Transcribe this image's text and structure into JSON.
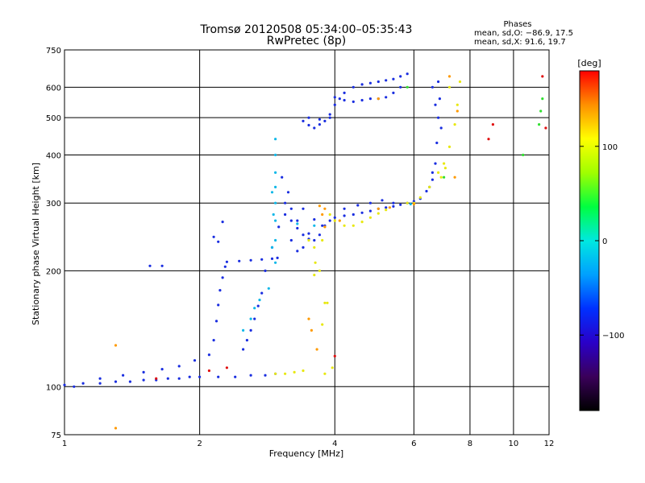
{
  "header": {
    "title_line1": "Tromsø 20120508 05:34:00–05:35:43",
    "title_line2": "RwPretec (8p)"
  },
  "stats": {
    "heading": "Phases",
    "line1": "mean, sd,O: −86.9, 17.5",
    "line2": "mean, sd,X:  91.6, 19.7"
  },
  "colorbar": {
    "unit_label": "[deg]",
    "ticks": [
      {
        "value": 100,
        "label": "100"
      },
      {
        "value": 0,
        "label": "0"
      },
      {
        "value": -100,
        "label": "−100"
      }
    ],
    "range": [
      -180,
      180
    ],
    "colors": [
      "#000000",
      "#3a005a",
      "#2a00c8",
      "#0030ff",
      "#00a0ff",
      "#00e8e0",
      "#00ff40",
      "#a0ff00",
      "#ffff00",
      "#ff9000",
      "#ff0000"
    ]
  },
  "chart_data": {
    "type": "scatter",
    "xlabel": "Frequency [MHz]",
    "ylabel": "Stationary phase Virtual Height [km]",
    "x_scale": "log",
    "y_scale": "log",
    "xlim": [
      1,
      12
    ],
    "ylim": [
      75,
      750
    ],
    "grid": true,
    "x_ticks": [
      {
        "value": 1,
        "label": "1"
      },
      {
        "value": 2,
        "label": "2"
      },
      {
        "value": 4,
        "label": "4"
      },
      {
        "value": 6,
        "label": "6"
      },
      {
        "value": 8,
        "label": "8"
      },
      {
        "value": 10,
        "label": "10"
      },
      {
        "value": 12,
        "label": "12"
      }
    ],
    "y_ticks": [
      {
        "value": 75,
        "label": "75"
      },
      {
        "value": 100,
        "label": "100"
      },
      {
        "value": 200,
        "label": "200"
      },
      {
        "value": 300,
        "label": "300"
      },
      {
        "value": 400,
        "label": "400"
      },
      {
        "value": 500,
        "label": "500"
      },
      {
        "value": 600,
        "label": "600"
      },
      {
        "value": 750,
        "label": "750"
      }
    ],
    "series": [
      {
        "color": "#1a2ee0",
        "points": [
          [
            1.0,
            101
          ],
          [
            1.05,
            100
          ],
          [
            1.1,
            102
          ],
          [
            1.2,
            102
          ],
          [
            1.3,
            103
          ],
          [
            1.4,
            103
          ],
          [
            1.5,
            104
          ],
          [
            1.6,
            104
          ],
          [
            1.7,
            105
          ],
          [
            1.8,
            105
          ],
          [
            1.9,
            106
          ],
          [
            2.0,
            106
          ],
          [
            2.2,
            106
          ],
          [
            2.4,
            106
          ],
          [
            2.6,
            107
          ],
          [
            2.8,
            107
          ],
          [
            2.95,
            108
          ],
          [
            1.2,
            105
          ],
          [
            1.35,
            107
          ],
          [
            1.5,
            109
          ],
          [
            1.65,
            111
          ],
          [
            1.8,
            113
          ],
          [
            1.95,
            117
          ],
          [
            2.1,
            121
          ],
          [
            2.15,
            132
          ],
          [
            2.18,
            148
          ],
          [
            2.2,
            163
          ],
          [
            2.22,
            178
          ],
          [
            2.25,
            192
          ],
          [
            2.28,
            205
          ],
          [
            2.3,
            211
          ],
          [
            2.45,
            212
          ],
          [
            2.6,
            213
          ],
          [
            2.75,
            214
          ],
          [
            2.9,
            215
          ],
          [
            2.98,
            216
          ],
          [
            1.55,
            206
          ],
          [
            1.65,
            206
          ],
          [
            2.2,
            238
          ],
          [
            2.25,
            268
          ],
          [
            2.15,
            245
          ],
          [
            2.5,
            125
          ],
          [
            2.55,
            132
          ],
          [
            2.6,
            140
          ],
          [
            2.65,
            150
          ],
          [
            2.7,
            162
          ],
          [
            2.75,
            175
          ],
          [
            2.8,
            200
          ],
          [
            2.9,
            230
          ],
          [
            3.0,
            260
          ],
          [
            3.1,
            280
          ],
          [
            3.2,
            270
          ],
          [
            3.3,
            258
          ],
          [
            3.4,
            248
          ],
          [
            3.5,
            242
          ],
          [
            3.6,
            240
          ],
          [
            3.7,
            248
          ],
          [
            3.8,
            262
          ],
          [
            3.9,
            270
          ],
          [
            4.0,
            275
          ],
          [
            4.2,
            278
          ],
          [
            4.4,
            280
          ],
          [
            4.6,
            283
          ],
          [
            4.8,
            286
          ],
          [
            5.0,
            290
          ],
          [
            5.2,
            292
          ],
          [
            5.4,
            294
          ],
          [
            5.6,
            297
          ],
          [
            5.8,
            300
          ],
          [
            6.0,
            303
          ],
          [
            6.2,
            308
          ],
          [
            6.4,
            322
          ],
          [
            6.6,
            345
          ],
          [
            6.7,
            380
          ],
          [
            6.75,
            430
          ],
          [
            6.8,
            500
          ],
          [
            6.85,
            560
          ],
          [
            6.8,
            620
          ],
          [
            6.6,
            600
          ],
          [
            6.7,
            540
          ],
          [
            6.9,
            470
          ],
          [
            6.6,
            360
          ],
          [
            6.5,
            330
          ],
          [
            3.2,
            240
          ],
          [
            3.3,
            225
          ],
          [
            3.4,
            230
          ],
          [
            3.5,
            250
          ],
          [
            3.3,
            270
          ],
          [
            3.1,
            300
          ],
          [
            3.05,
            350
          ],
          [
            3.15,
            320
          ],
          [
            3.2,
            290
          ],
          [
            3.4,
            290
          ],
          [
            3.6,
            272
          ],
          [
            3.75,
            262
          ],
          [
            4.2,
            290
          ],
          [
            4.5,
            296
          ],
          [
            4.8,
            300
          ],
          [
            5.1,
            305
          ],
          [
            5.4,
            300
          ],
          [
            3.4,
            490
          ],
          [
            3.5,
            478
          ],
          [
            3.6,
            470
          ],
          [
            3.7,
            480
          ],
          [
            3.8,
            490
          ],
          [
            3.9,
            510
          ],
          [
            4.0,
            540
          ],
          [
            4.1,
            560
          ],
          [
            4.2,
            580
          ],
          [
            4.4,
            600
          ],
          [
            4.6,
            610
          ],
          [
            4.8,
            615
          ],
          [
            5.0,
            620
          ],
          [
            5.2,
            625
          ],
          [
            5.4,
            630
          ],
          [
            5.6,
            640
          ],
          [
            5.8,
            650
          ],
          [
            4.0,
            565
          ],
          [
            4.2,
            555
          ],
          [
            4.4,
            550
          ],
          [
            4.6,
            555
          ],
          [
            4.8,
            560
          ],
          [
            5.0,
            560
          ],
          [
            5.2,
            565
          ],
          [
            5.4,
            580
          ],
          [
            5.6,
            600
          ],
          [
            3.5,
            500
          ],
          [
            3.7,
            495
          ],
          [
            3.9,
            500
          ]
        ]
      },
      {
        "color": "#10b8e8",
        "points": [
          [
            2.95,
            210
          ],
          [
            2.95,
            240
          ],
          [
            2.95,
            270
          ],
          [
            2.95,
            300
          ],
          [
            2.95,
            330
          ],
          [
            2.95,
            360
          ],
          [
            2.95,
            400
          ],
          [
            2.95,
            440
          ],
          [
            2.9,
            230
          ],
          [
            2.92,
            280
          ],
          [
            2.9,
            320
          ],
          [
            2.6,
            150
          ],
          [
            2.65,
            160
          ],
          [
            2.72,
            168
          ],
          [
            2.85,
            180
          ],
          [
            2.5,
            140
          ],
          [
            3.3,
            265
          ],
          [
            3.6,
            262
          ],
          [
            5.9,
            298
          ]
        ]
      },
      {
        "color": "#e8e810",
        "points": [
          [
            2.95,
            108
          ],
          [
            3.1,
            108
          ],
          [
            3.25,
            109
          ],
          [
            3.4,
            110
          ],
          [
            3.6,
            195
          ],
          [
            3.62,
            210
          ],
          [
            3.7,
            200
          ],
          [
            3.5,
            240
          ],
          [
            3.6,
            230
          ],
          [
            3.75,
            240
          ],
          [
            3.9,
            280
          ],
          [
            4.0,
            270
          ],
          [
            4.2,
            262
          ],
          [
            4.4,
            262
          ],
          [
            4.6,
            268
          ],
          [
            4.8,
            275
          ],
          [
            5.0,
            282
          ],
          [
            5.2,
            288
          ],
          [
            5.8,
            300
          ],
          [
            6.0,
            300
          ],
          [
            6.2,
            310
          ],
          [
            6.5,
            330
          ],
          [
            6.8,
            360
          ],
          [
            7.0,
            380
          ],
          [
            7.2,
            420
          ],
          [
            7.4,
            480
          ],
          [
            7.5,
            540
          ],
          [
            7.6,
            620
          ],
          [
            7.2,
            600
          ],
          [
            6.9,
            350
          ],
          [
            7.05,
            370
          ],
          [
            3.8,
            108
          ],
          [
            3.95,
            112
          ],
          [
            3.75,
            145
          ],
          [
            3.8,
            165
          ],
          [
            3.85,
            165
          ]
        ]
      },
      {
        "color": "#ff9a00",
        "points": [
          [
            3.7,
            295
          ],
          [
            3.75,
            280
          ],
          [
            3.8,
            260
          ],
          [
            3.65,
            125
          ],
          [
            3.5,
            150
          ],
          [
            3.55,
            140
          ],
          [
            3.8,
            290
          ],
          [
            4.1,
            270
          ],
          [
            5.0,
            290
          ],
          [
            5.3,
            292
          ],
          [
            6.0,
            298
          ],
          [
            7.2,
            640
          ],
          [
            7.4,
            350
          ],
          [
            7.5,
            520
          ],
          [
            5.0,
            560
          ],
          [
            1.3,
            128
          ],
          [
            1.3,
            78
          ]
        ]
      },
      {
        "color": "#30e030",
        "points": [
          [
            11.5,
            520
          ],
          [
            11.6,
            560
          ],
          [
            11.4,
            480
          ],
          [
            10.5,
            400
          ],
          [
            7.0,
            350
          ],
          [
            5.8,
            600
          ]
        ]
      },
      {
        "color": "#e01010",
        "points": [
          [
            2.1,
            110
          ],
          [
            1.6,
            105
          ],
          [
            2.3,
            112
          ],
          [
            4.0,
            120
          ],
          [
            8.8,
            440
          ],
          [
            9.0,
            480
          ],
          [
            11.6,
            640
          ],
          [
            11.8,
            470
          ]
        ]
      }
    ]
  }
}
